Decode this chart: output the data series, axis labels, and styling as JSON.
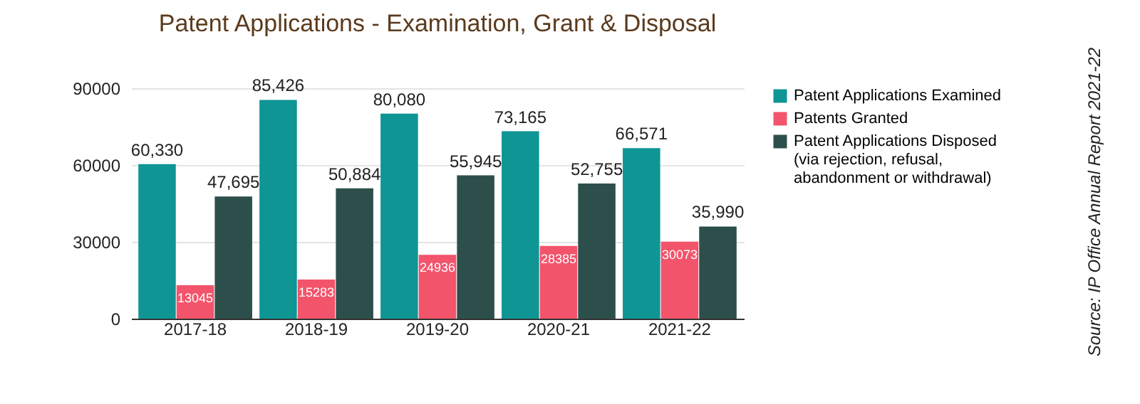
{
  "chart_data": {
    "type": "bar",
    "title": "Patent Applications - Examination, Grant & Disposal",
    "categories": [
      "2017-18",
      "2018-19",
      "2019-20",
      "2020-21",
      "2021-22"
    ],
    "series": [
      {
        "name": "Patent Applications Examined",
        "color": "#0e9594",
        "values": [
          60330,
          85426,
          80080,
          73165,
          66571
        ],
        "value_labels": [
          "60,330",
          "85,426",
          "80,080",
          "73,165",
          "66,571"
        ]
      },
      {
        "name": "Patents Granted",
        "color": "#f2546b",
        "values": [
          13045,
          15283,
          24936,
          28385,
          30073
        ],
        "value_labels": [
          "13045",
          "15283",
          "24936",
          "28385",
          "30073"
        ]
      },
      {
        "name": "Patent Applications Disposed (via rejection, refusal, abandonment or withdrawal)",
        "color": "#2d4f4b",
        "values": [
          47695,
          50884,
          55945,
          52755,
          35990
        ],
        "value_labels": [
          "47,695",
          "50,884",
          "55,945",
          "52,755",
          "35,990"
        ]
      }
    ],
    "ylim": [
      0,
      90000
    ],
    "yticks": [
      0,
      30000,
      60000,
      90000
    ],
    "grid": "y",
    "legend": "right",
    "annotations": [
      "Source: IP Office Annual Report 2021-22"
    ]
  }
}
